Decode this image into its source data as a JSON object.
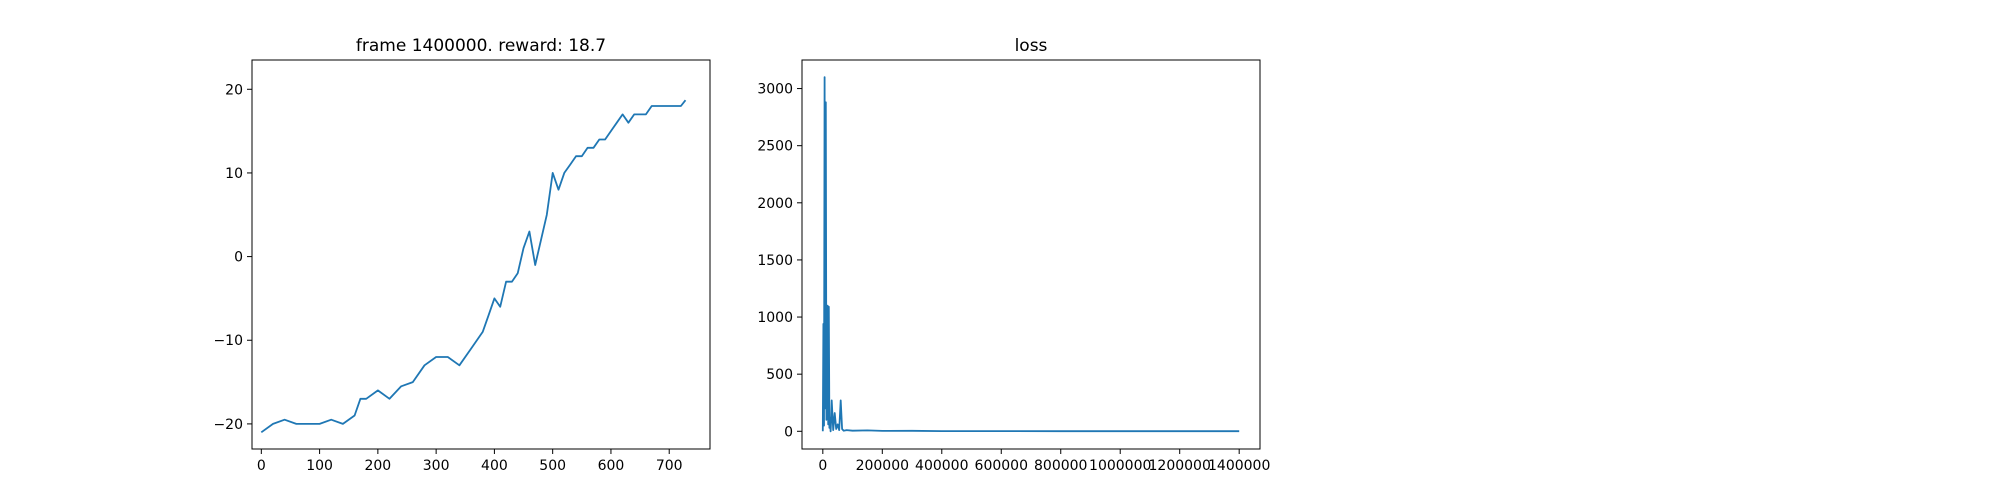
{
  "chart_data": [
    {
      "type": "line",
      "title": "frame 1400000. reward: 18.7",
      "xlabel": "",
      "ylabel": "",
      "xlim": [
        -16,
        770
      ],
      "ylim": [
        -23,
        23.5
      ],
      "x_ticks": [
        0,
        100,
        200,
        300,
        400,
        500,
        600,
        700
      ],
      "y_ticks": [
        -20,
        -10,
        0,
        10,
        20
      ],
      "x_tick_labels": [
        "0",
        "100",
        "200",
        "300",
        "400",
        "500",
        "600",
        "700"
      ],
      "y_tick_labels": [
        "−20",
        "−10",
        "0",
        "10",
        "20"
      ],
      "color": "#1f77b4",
      "grid": false,
      "series": [
        {
          "x": [
            0,
            20,
            40,
            60,
            80,
            100,
            120,
            140,
            160,
            170,
            180,
            200,
            220,
            240,
            260,
            280,
            300,
            320,
            340,
            360,
            380,
            390,
            400,
            410,
            420,
            430,
            440,
            450,
            460,
            470,
            480,
            490,
            500,
            510,
            520,
            530,
            540,
            550,
            560,
            570,
            580,
            590,
            600,
            610,
            620,
            630,
            640,
            650,
            660,
            670,
            680,
            690,
            700,
            710,
            720,
            728
          ],
          "y": [
            -21,
            -20,
            -19.5,
            -20,
            -20,
            -20,
            -19.5,
            -20,
            -19,
            -17,
            -17,
            -16,
            -17,
            -15.5,
            -15,
            -13,
            -12,
            -12,
            -13,
            -11,
            -9,
            -7,
            -5,
            -6,
            -3,
            -3,
            -2,
            1,
            3,
            -1,
            2,
            5,
            10,
            8,
            10,
            11,
            12,
            12,
            13,
            13,
            14,
            14,
            15,
            16,
            17,
            16,
            17,
            17,
            17,
            18,
            18,
            18,
            18,
            18,
            18,
            18.7
          ]
        }
      ]
    },
    {
      "type": "line",
      "title": "loss",
      "xlabel": "",
      "ylabel": "",
      "xlim": [
        -70000,
        1470000
      ],
      "ylim": [
        -155,
        3250
      ],
      "x_ticks": [
        0,
        200000,
        400000,
        600000,
        800000,
        1000000,
        1200000,
        1400000
      ],
      "y_ticks": [
        0,
        500,
        1000,
        1500,
        2000,
        2500,
        3000
      ],
      "x_tick_labels": [
        "0",
        "200000",
        "400000",
        "600000",
        "800000",
        "1000000",
        "1200000",
        "1400000"
      ],
      "y_tick_labels": [
        "0",
        "500",
        "1000",
        "1500",
        "2000",
        "2500",
        "3000"
      ],
      "color": "#1f77b4",
      "grid": false,
      "series": [
        {
          "x": [
            0,
            2000,
            4000,
            6000,
            8000,
            10000,
            12000,
            14000,
            16000,
            18000,
            20000,
            22000,
            24000,
            26000,
            28000,
            30000,
            35000,
            40000,
            45000,
            50000,
            55000,
            60000,
            65000,
            70000,
            80000,
            100000,
            150000,
            200000,
            300000,
            400000,
            600000,
            800000,
            1000000,
            1200000,
            1400000
          ],
          "y": [
            0,
            940,
            50,
            3100,
            200,
            2880,
            100,
            800,
            1100,
            60,
            1090,
            30,
            120,
            0,
            90,
            270,
            10,
            160,
            20,
            60,
            10,
            270,
            20,
            5,
            10,
            5,
            8,
            3,
            4,
            2,
            2,
            1,
            1,
            1,
            1
          ]
        }
      ]
    }
  ]
}
